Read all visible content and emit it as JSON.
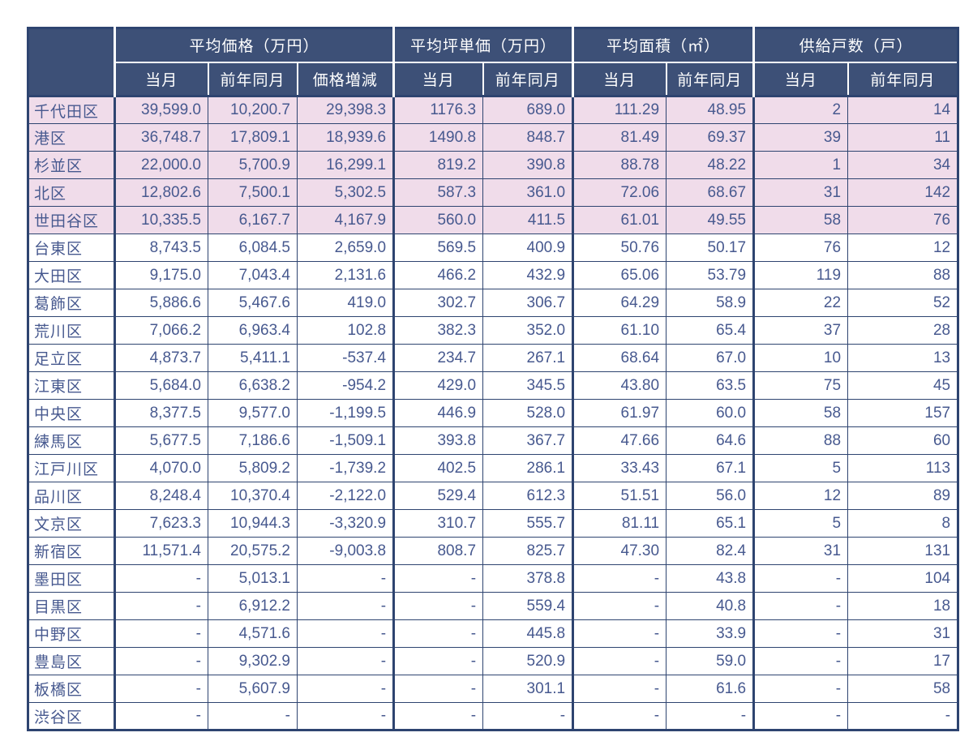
{
  "chart_data": {
    "type": "table",
    "title": "",
    "corner_label": "",
    "column_groups": [
      {
        "label": "平均価格（万円）",
        "span": 3
      },
      {
        "label": "平均坪単価（万円）",
        "span": 2
      },
      {
        "label": "平均面積（㎡）",
        "span": 2
      },
      {
        "label": "供給戸数（戸）",
        "span": 2
      }
    ],
    "sub_headers": [
      "当月",
      "前年同月",
      "価格増減",
      "当月",
      "前年同月",
      "当月",
      "前年同月",
      "当月",
      "前年同月"
    ],
    "rows": [
      {
        "ward": "千代田区",
        "highlight": true,
        "values": [
          "39,599.0",
          "10,200.7",
          "29,398.3",
          "1176.3",
          "689.0",
          "111.29",
          "48.95",
          "2",
          "14"
        ]
      },
      {
        "ward": "港区",
        "highlight": true,
        "values": [
          "36,748.7",
          "17,809.1",
          "18,939.6",
          "1490.8",
          "848.7",
          "81.49",
          "69.37",
          "39",
          "11"
        ]
      },
      {
        "ward": "杉並区",
        "highlight": true,
        "values": [
          "22,000.0",
          "5,700.9",
          "16,299.1",
          "819.2",
          "390.8",
          "88.78",
          "48.22",
          "1",
          "34"
        ]
      },
      {
        "ward": "北区",
        "highlight": true,
        "values": [
          "12,802.6",
          "7,500.1",
          "5,302.5",
          "587.3",
          "361.0",
          "72.06",
          "68.67",
          "31",
          "142"
        ]
      },
      {
        "ward": "世田谷区",
        "highlight": true,
        "values": [
          "10,335.5",
          "6,167.7",
          "4,167.9",
          "560.0",
          "411.5",
          "61.01",
          "49.55",
          "58",
          "76"
        ]
      },
      {
        "ward": "台東区",
        "highlight": false,
        "values": [
          "8,743.5",
          "6,084.5",
          "2,659.0",
          "569.5",
          "400.9",
          "50.76",
          "50.17",
          "76",
          "12"
        ]
      },
      {
        "ward": "大田区",
        "highlight": false,
        "values": [
          "9,175.0",
          "7,043.4",
          "2,131.6",
          "466.2",
          "432.9",
          "65.06",
          "53.79",
          "119",
          "88"
        ]
      },
      {
        "ward": "葛飾区",
        "highlight": false,
        "values": [
          "5,886.6",
          "5,467.6",
          "419.0",
          "302.7",
          "306.7",
          "64.29",
          "58.9",
          "22",
          "52"
        ]
      },
      {
        "ward": "荒川区",
        "highlight": false,
        "values": [
          "7,066.2",
          "6,963.4",
          "102.8",
          "382.3",
          "352.0",
          "61.10",
          "65.4",
          "37",
          "28"
        ]
      },
      {
        "ward": "足立区",
        "highlight": false,
        "values": [
          "4,873.7",
          "5,411.1",
          "-537.4",
          "234.7",
          "267.1",
          "68.64",
          "67.0",
          "10",
          "13"
        ]
      },
      {
        "ward": "江東区",
        "highlight": false,
        "values": [
          "5,684.0",
          "6,638.2",
          "-954.2",
          "429.0",
          "345.5",
          "43.80",
          "63.5",
          "75",
          "45"
        ]
      },
      {
        "ward": "中央区",
        "highlight": false,
        "values": [
          "8,377.5",
          "9,577.0",
          "-1,199.5",
          "446.9",
          "528.0",
          "61.97",
          "60.0",
          "58",
          "157"
        ]
      },
      {
        "ward": "練馬区",
        "highlight": false,
        "values": [
          "5,677.5",
          "7,186.6",
          "-1,509.1",
          "393.8",
          "367.7",
          "47.66",
          "64.6",
          "88",
          "60"
        ]
      },
      {
        "ward": "江戸川区",
        "highlight": false,
        "values": [
          "4,070.0",
          "5,809.2",
          "-1,739.2",
          "402.5",
          "286.1",
          "33.43",
          "67.1",
          "5",
          "113"
        ]
      },
      {
        "ward": "品川区",
        "highlight": false,
        "values": [
          "8,248.4",
          "10,370.4",
          "-2,122.0",
          "529.4",
          "612.3",
          "51.51",
          "56.0",
          "12",
          "89"
        ]
      },
      {
        "ward": "文京区",
        "highlight": false,
        "values": [
          "7,623.3",
          "10,944.3",
          "-3,320.9",
          "310.7",
          "555.7",
          "81.11",
          "65.1",
          "5",
          "8"
        ]
      },
      {
        "ward": "新宿区",
        "highlight": false,
        "values": [
          "11,571.4",
          "20,575.2",
          "-9,003.8",
          "808.7",
          "825.7",
          "47.30",
          "82.4",
          "31",
          "131"
        ]
      },
      {
        "ward": "墨田区",
        "highlight": false,
        "values": [
          "-",
          "5,013.1",
          "-",
          "-",
          "378.8",
          "-",
          "43.8",
          "-",
          "104"
        ]
      },
      {
        "ward": "目黒区",
        "highlight": false,
        "values": [
          "-",
          "6,912.2",
          "-",
          "-",
          "559.4",
          "-",
          "40.8",
          "-",
          "18"
        ]
      },
      {
        "ward": "中野区",
        "highlight": false,
        "values": [
          "-",
          "4,571.6",
          "-",
          "-",
          "445.8",
          "-",
          "33.9",
          "-",
          "31"
        ]
      },
      {
        "ward": "豊島区",
        "highlight": false,
        "values": [
          "-",
          "9,302.9",
          "-",
          "-",
          "520.9",
          "-",
          "59.0",
          "-",
          "17"
        ]
      },
      {
        "ward": "板橋区",
        "highlight": false,
        "values": [
          "-",
          "5,607.9",
          "-",
          "-",
          "301.1",
          "-",
          "61.6",
          "-",
          "58"
        ]
      },
      {
        "ward": "渋谷区",
        "highlight": false,
        "values": [
          "-",
          "-",
          "-",
          "-",
          "-",
          "-",
          "-",
          "-",
          "-"
        ]
      }
    ]
  },
  "colors": {
    "header_bg": "#3D5077",
    "grid": "#2E4470",
    "row_pink": "#F0DCEA",
    "row_white": "#FFFFFF",
    "text": "#47598F",
    "header_text": "#FFFFFF"
  }
}
